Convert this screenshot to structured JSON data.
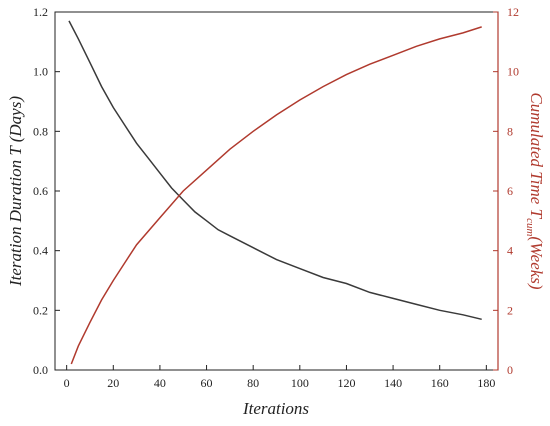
{
  "chart_data": {
    "type": "line",
    "xlabel": "Iterations",
    "ylabel_left": {
      "main": "Iteration Duration ",
      "var": "T",
      "unit": " (Days)"
    },
    "ylabel_right": {
      "main": "Cumulated Time ",
      "var": "T",
      "sub": "cum",
      "unit": "(Weeks)"
    },
    "xlim": [
      -5,
      185
    ],
    "ylim_left": [
      0,
      1.2
    ],
    "ylim_right": [
      0,
      12
    ],
    "xticks": [
      0,
      20,
      40,
      60,
      80,
      100,
      120,
      140,
      160,
      180
    ],
    "yticks_left": [
      "0.0",
      "0.2",
      "0.4",
      "0.6",
      "0.8",
      "1.0",
      "1.2"
    ],
    "yticks_right": [
      "0",
      "2",
      "4",
      "6",
      "8",
      "10",
      "12"
    ],
    "grid": false,
    "colors": {
      "left_axis": "#222222",
      "right_axis": "#b03a2e"
    },
    "series": [
      {
        "axis": "left",
        "color": "#3a3a3a",
        "x": [
          1,
          5,
          10,
          15,
          20,
          25,
          30,
          35,
          40,
          45,
          50,
          55,
          60,
          65,
          70,
          80,
          90,
          100,
          110,
          120,
          130,
          140,
          150,
          160,
          170,
          178
        ],
        "y": [
          1.17,
          1.11,
          1.03,
          0.95,
          0.88,
          0.82,
          0.76,
          0.71,
          0.66,
          0.61,
          0.57,
          0.53,
          0.5,
          0.47,
          0.45,
          0.41,
          0.37,
          0.34,
          0.31,
          0.29,
          0.26,
          0.24,
          0.22,
          0.2,
          0.185,
          0.17
        ]
      },
      {
        "axis": "right",
        "color": "#b03a2e",
        "x": [
          2,
          5,
          10,
          15,
          20,
          25,
          30,
          40,
          50,
          60,
          70,
          80,
          90,
          100,
          110,
          120,
          130,
          140,
          150,
          160,
          170,
          178
        ],
        "y": [
          0.2,
          0.8,
          1.6,
          2.35,
          3.0,
          3.6,
          4.2,
          5.1,
          6.0,
          6.7,
          7.4,
          8.0,
          8.55,
          9.05,
          9.5,
          9.9,
          10.25,
          10.55,
          10.85,
          11.1,
          11.3,
          11.5
        ]
      }
    ]
  }
}
